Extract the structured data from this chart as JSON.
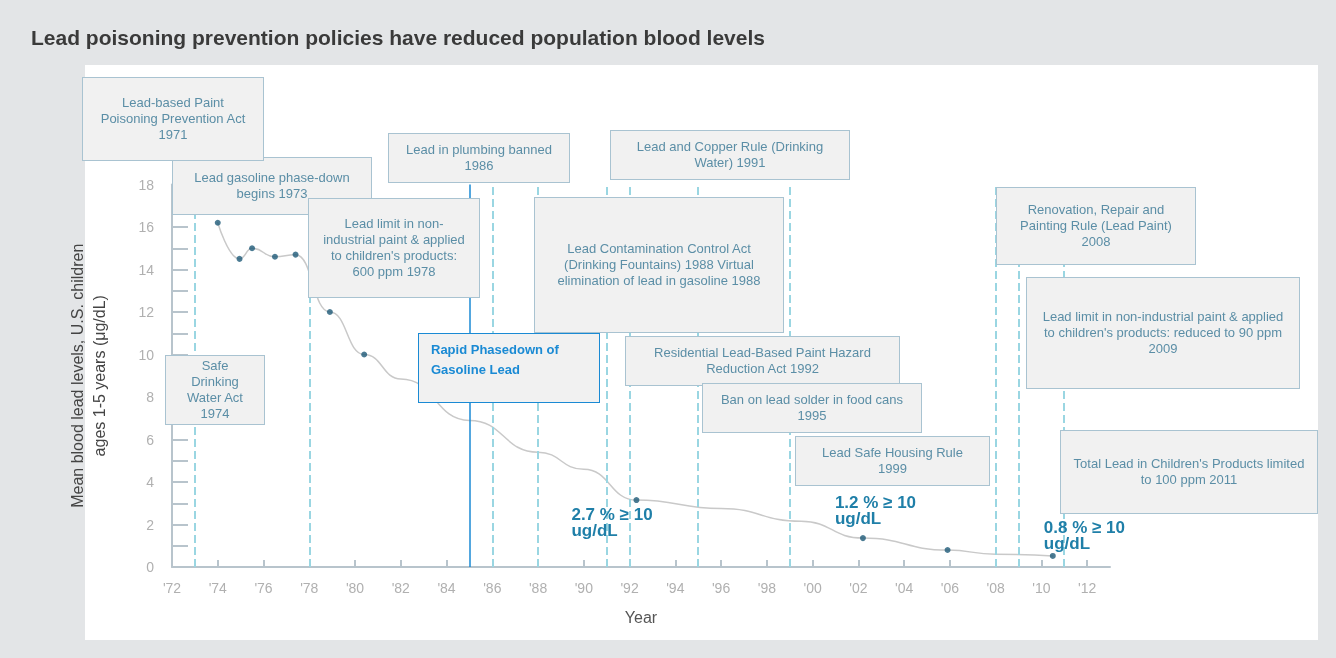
{
  "chart_data": {
    "type": "line",
    "title": "Lead poisoning prevention policies have reduced population blood levels",
    "xlabel": "Year",
    "ylabel": "Mean blood lead levels, U.S. children ages 1-5 years (μg/dL)",
    "xlim": [
      1972,
      2013
    ],
    "xticks": [
      {
        "value": 1972,
        "label": "'72"
      },
      {
        "value": 1974,
        "label": "'74"
      },
      {
        "value": 1976,
        "label": "'76"
      },
      {
        "value": 1978,
        "label": "'78"
      },
      {
        "value": 1980,
        "label": "'80"
      },
      {
        "value": 1982,
        "label": "'82"
      },
      {
        "value": 1984,
        "label": "'84"
      },
      {
        "value": 1986,
        "label": "'86"
      },
      {
        "value": 1988,
        "label": "'88"
      },
      {
        "value": 1990,
        "label": "'90"
      },
      {
        "value": 1992,
        "label": "'92"
      },
      {
        "value": 1994,
        "label": "'94"
      },
      {
        "value": 1996,
        "label": "'96"
      },
      {
        "value": 1998,
        "label": "'98"
      },
      {
        "value": 2000,
        "label": "'00"
      },
      {
        "value": 2002,
        "label": "'02"
      },
      {
        "value": 2004,
        "label": "'04"
      },
      {
        "value": 2006,
        "label": "'06"
      },
      {
        "value": 2008,
        "label": "'08"
      },
      {
        "value": 2010,
        "label": "'10"
      },
      {
        "value": 2012,
        "label": "'12"
      }
    ],
    "ylim": [
      0,
      18
    ],
    "yticks": [
      0,
      {
        "value": 1,
        "label": null
      },
      2,
      {
        "value": 3,
        "label": null
      },
      4,
      {
        "value": 5,
        "label": null
      },
      6,
      {
        "value": 7,
        "label": null
      },
      8,
      {
        "value": 9,
        "label": null
      },
      10,
      {
        "value": 11,
        "label": null
      },
      12,
      {
        "value": 13,
        "label": null
      },
      14,
      {
        "value": 15,
        "label": null
      },
      16,
      {
        "value": 17,
        "label": null
      },
      18
    ],
    "grid": false,
    "series": [
      {
        "type": "line",
        "color": "#c9c9c9",
        "marker": "none",
        "x": [
          1974.0,
          1974.95,
          1975.5,
          1976.5,
          1977.4,
          1978.9,
          1980.4,
          1982,
          1985,
          1988,
          1990,
          1992.3,
          1996,
          1999.5,
          2002.2,
          2005.9,
          2008,
          2010.5
        ],
        "values": [
          16.2,
          14.5,
          15.0,
          14.6,
          14.7,
          12.0,
          10.0,
          8.85,
          6.9,
          5.4,
          4.6,
          3.15,
          2.75,
          2.15,
          1.36,
          0.8,
          0.6,
          0.52
        ]
      },
      {
        "type": "scatter",
        "color": "#1e5a78",
        "marker": "circle",
        "x": [
          1974.0,
          1974.95,
          1975.5,
          1976.5,
          1977.4,
          1978.9,
          1980.4,
          1992.3,
          2002.2,
          2005.9,
          2010.5
        ],
        "values": [
          16.2,
          14.5,
          15.0,
          14.6,
          14.7,
          12.0,
          10.0,
          3.15,
          1.36,
          0.8,
          0.52
        ]
      }
    ],
    "ref_lines": [
      {
        "axis": "x",
        "value": 1973,
        "label": "Lead gasoline phase-down begins 1973",
        "color": "#9ad6e2",
        "line_style": "dashed"
      },
      {
        "axis": "x",
        "value": 1978,
        "label": "Lead limit in non-industrial paint & applied to children's products: 600 ppm 1978",
        "color": "#9ad6e2",
        "line_style": "dashed"
      },
      {
        "axis": "x",
        "value": 1985,
        "label": "Rapid Phasedown of Gasoline Lead",
        "color": "#1a8ad4",
        "line_style": "solid"
      },
      {
        "axis": "x",
        "value": 1986,
        "label": "Lead in plumbing banned 1986",
        "color": "#9ad6e2",
        "line_style": "dashed"
      },
      {
        "axis": "x",
        "value": 1988,
        "label": "Lead Contamination Control Act (Drinking Fountains) 1988 Virtual elimination of lead in gasoline 1988",
        "color": "#9ad6e2",
        "line_style": "dashed"
      },
      {
        "axis": "x",
        "value": 1991,
        "label": "Lead and Copper Rule (Drinking Water) 1991",
        "color": "#9ad6e2",
        "line_style": "dashed"
      },
      {
        "axis": "x",
        "value": 1992,
        "label": "Residential Lead-Based Paint Hazard Reduction Act 1992",
        "color": "#9ad6e2",
        "line_style": "dashed"
      },
      {
        "axis": "x",
        "value": 1995,
        "label": "Ban on lead solder in food cans 1995",
        "color": "#9ad6e2",
        "line_style": "dashed"
      },
      {
        "axis": "x",
        "value": 1999,
        "label": "Lead Safe Housing Rule 1999",
        "color": "#9ad6e2",
        "line_style": "dashed"
      },
      {
        "axis": "x",
        "value": 2008,
        "label": "Renovation, Repair and Painting Rule (Lead Paint) 2008",
        "color": "#9ad6e2",
        "line_style": "dashed"
      },
      {
        "axis": "x",
        "value": 2009,
        "label": "Lead limit in non-industrial paint & applied to children's products: reduced to 90 ppm 2009",
        "color": "#9ad6e2",
        "line_style": "dashed"
      },
      {
        "axis": "x",
        "value": 2011,
        "label": "Total Lead in Children's Products limited to 100 ppm 2011",
        "color": "#9ad6e2",
        "line_style": "dashed"
      }
    ],
    "annotations": [
      "Lead-based Paint Poisoning Prevention Act 1971",
      "Safe Drinking Water Act 1974",
      {
        "text": "2.7 % ≥ 10 ug/dL",
        "x": 1992.3,
        "y": 3.15
      },
      {
        "text": "1.2 % ≥ 10 ug/dL",
        "x": 2002.2,
        "y": 1.36
      },
      {
        "text": "0.8 % ≥ 10 ug/dL",
        "x": 2010.5,
        "y": 0.52
      }
    ]
  }
}
